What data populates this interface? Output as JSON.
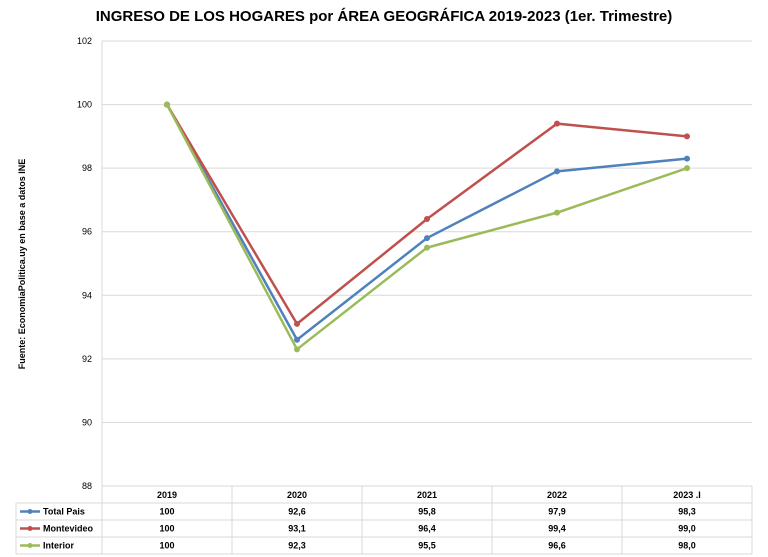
{
  "chart_data": {
    "type": "line",
    "title": "INGRESO DE LOS HOGARES por ÁREA GEOGRÁFICA 2019-2023 (1er. Trimestre)",
    "side_note": "Fuente: EconomiaPolitica.uy  en base a datos INE",
    "categories": [
      "2019",
      "2020",
      "2021",
      "2022",
      "2023 .I"
    ],
    "ylim": [
      88,
      102
    ],
    "yticks": [
      88,
      90,
      92,
      94,
      96,
      98,
      100,
      102
    ],
    "grid": true,
    "legend_placement": "data-table",
    "series": [
      {
        "name": "Total Pais",
        "color": "#4f81bd",
        "values": [
          100,
          92.6,
          95.8,
          97.9,
          98.3
        ],
        "labels": [
          "100",
          "92,6",
          "95,8",
          "97,9",
          "98,3"
        ]
      },
      {
        "name": "Montevideo",
        "color": "#c0504d",
        "values": [
          100,
          93.1,
          96.4,
          99.4,
          99.0
        ],
        "labels": [
          "100",
          "93,1",
          "96,4",
          "99,4",
          "99,0"
        ]
      },
      {
        "name": "Interior",
        "color": "#9bbb59",
        "values": [
          100,
          92.3,
          95.5,
          96.6,
          98.0
        ],
        "labels": [
          "100",
          "92,3",
          "95,5",
          "96,6",
          "98,0"
        ]
      }
    ]
  }
}
